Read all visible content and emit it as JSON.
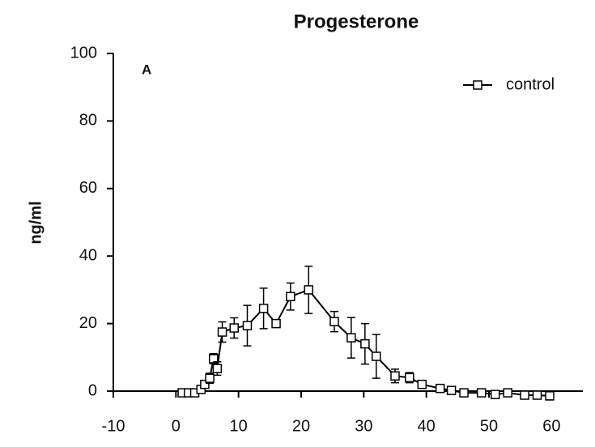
{
  "chart_data": {
    "type": "line",
    "title": "Progesterone",
    "annotation": "A",
    "y_label": "ng/ml",
    "x": [
      1,
      2,
      3,
      4,
      4.6,
      5.4,
      6,
      6.6,
      7.4,
      9.3,
      11.4,
      14,
      16,
      18.3,
      21.2,
      25.3,
      28,
      30.2,
      32,
      35,
      37.3,
      39.3,
      42.2,
      44,
      46,
      48.8,
      51,
      53,
      55.7,
      57.7,
      59.7
    ],
    "series": [
      {
        "name": "control",
        "color": "#000000",
        "values": [
          -0.5,
          -0.5,
          -0.5,
          0.5,
          2,
          3.8,
          9.6,
          6.7,
          17.5,
          18.7,
          19.4,
          24.5,
          20,
          28,
          30,
          20.6,
          15.8,
          14,
          10.3,
          4.5,
          4,
          2,
          0.8,
          0.2,
          -0.5,
          -0.5,
          -1,
          -0.5,
          -1.2,
          -1.2,
          -1.4
        ],
        "errors": [
          0.5,
          0.5,
          0.5,
          1,
          1,
          1.5,
          1.5,
          2,
          3,
          3,
          6,
          6,
          1,
          4,
          7,
          3,
          6,
          6,
          6.5,
          2,
          1.5,
          1,
          1,
          0.8,
          0.8,
          0.8,
          1,
          0.8,
          0.8,
          0.8,
          1.2
        ]
      }
    ],
    "xlim": [
      -10,
      65
    ],
    "xticks": [
      -10,
      0,
      10,
      20,
      30,
      40,
      50,
      60
    ],
    "ylim": [
      0,
      100
    ],
    "yticks": [
      0,
      20,
      40,
      60,
      80,
      100
    ],
    "grid": false,
    "legend": "top-right"
  }
}
